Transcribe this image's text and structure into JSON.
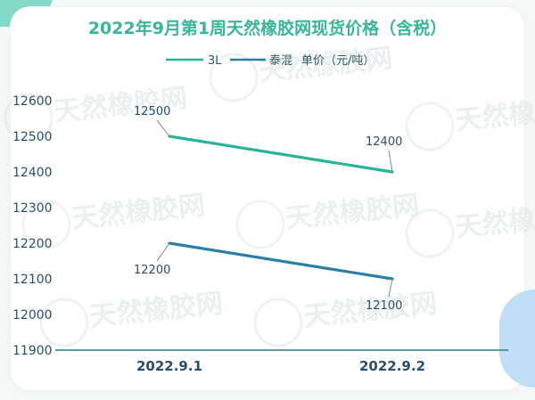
{
  "chart_data": {
    "type": "line",
    "title": "2022年9月第1周天然橡胶网现货价格（含税）",
    "legend": {
      "items": [
        "3L",
        "泰混"
      ],
      "unit": "单价（元/吨）",
      "placement": "top"
    },
    "categories": [
      "2022.9.1",
      "2022.9.2"
    ],
    "series": [
      {
        "name": "3L",
        "values": [
          12500,
          12400
        ],
        "color": "#2bb39a",
        "labels": [
          "12500",
          "12400"
        ]
      },
      {
        "name": "泰混",
        "values": [
          12200,
          12100
        ],
        "color": "#2b7fa6",
        "labels": [
          "12200",
          "12100"
        ]
      }
    ],
    "ylim": [
      11900,
      12600
    ],
    "yticks": [
      "11900",
      "12000",
      "12100",
      "12200",
      "12300",
      "12400",
      "12500",
      "12600"
    ],
    "grid": false,
    "watermark": "天然橡胶网"
  }
}
